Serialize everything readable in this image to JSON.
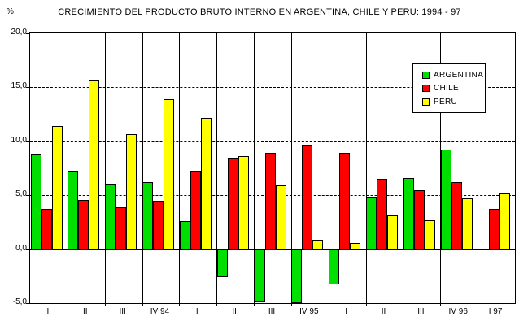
{
  "title": "CRECIMIENTO DEL PRODUCTO BRUTO INTERNO EN ARGENTINA, CHILE Y PERU: 1994 - 97",
  "y_axis": {
    "unit_label": "%",
    "tick_labels": [
      "20,0",
      "15,0",
      "10,0",
      "5,0",
      "0,0",
      "-5,0"
    ],
    "tick_values": [
      20,
      15,
      10,
      5,
      0,
      -5
    ]
  },
  "chart_data": {
    "type": "bar",
    "title": "CRECIMIENTO DEL PRODUCTO BRUTO INTERNO EN ARGENTINA, CHILE Y PERU: 1994 - 97",
    "xlabel": "",
    "ylabel": "%",
    "ylim": [
      -5,
      20
    ],
    "grid": "horizontal dashed every 5 units, solid line at 0, vertical solid separators per category",
    "legend_position": "upper-right inside plot",
    "categories": [
      "I",
      "II",
      "III",
      "IV 94",
      "I",
      "II",
      "III",
      "IV 95",
      "I",
      "II",
      "III",
      "IV 96",
      "I 97"
    ],
    "series": [
      {
        "name": "ARGENTINA",
        "color": "#00E000",
        "values": [
          8.8,
          7.2,
          6.0,
          6.2,
          2.6,
          -2.6,
          -4.9,
          -5.0,
          -3.3,
          4.8,
          6.6,
          9.2,
          null
        ]
      },
      {
        "name": "CHILE",
        "color": "#FF0000",
        "values": [
          3.7,
          4.6,
          3.9,
          4.5,
          7.2,
          8.4,
          8.9,
          9.6,
          8.9,
          6.5,
          5.5,
          6.2,
          3.7
        ]
      },
      {
        "name": "PERU",
        "color": "#FFFF00",
        "values": [
          11.4,
          15.6,
          10.7,
          13.9,
          12.2,
          8.6,
          5.9,
          0.9,
          0.6,
          3.1,
          2.7,
          4.7,
          5.2
        ]
      }
    ]
  }
}
